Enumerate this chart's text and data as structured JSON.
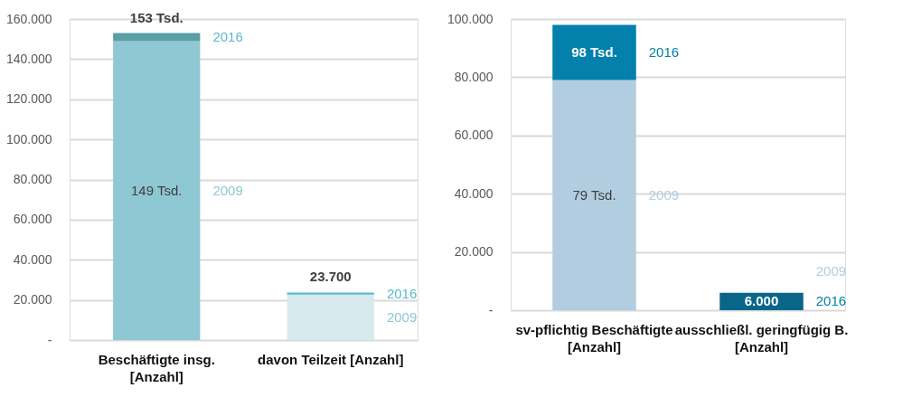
{
  "chart_data": [
    {
      "type": "bar",
      "stacked": true,
      "grid": "y",
      "categories": [
        "Beschäftigte insg. [Anzahl]",
        "davon Teilzeit [Anzahl]"
      ],
      "series": [
        {
          "name": "2009",
          "color": "#8ec8d2",
          "colors": [
            "#8ec8d2",
            "#d6eaed"
          ],
          "values": [
            149000,
            22700
          ]
        },
        {
          "name": "2016",
          "color": "#5ab8cc",
          "colors": [
            "#5a9ea6",
            "#5ab8cc"
          ],
          "values": [
            4000,
            1000
          ]
        }
      ],
      "totals": [
        null,
        "23.700"
      ],
      "annotations": [
        "149 Tsd.",
        {
          "text": "153 Tsd.",
          "x": "Beschäftigte insg. [Anzahl]",
          "y": 153000
        }
      ],
      "ylim": [
        0,
        160000
      ],
      "yticks": [
        {
          "value": 0,
          "label": "-"
        },
        {
          "value": 20000,
          "label": "20.000"
        },
        {
          "value": 40000,
          "label": "40.000"
        },
        {
          "value": 60000,
          "label": "60.000"
        },
        {
          "value": 80000,
          "label": "80.000"
        },
        {
          "value": 100000,
          "label": "100.000"
        },
        {
          "value": 120000,
          "label": "120.000"
        },
        {
          "value": 140000,
          "label": "140.000"
        },
        {
          "value": 160000,
          "label": "160.000"
        }
      ]
    },
    {
      "type": "bar",
      "stacked": true,
      "grid": "y",
      "categories": [
        "sv-pflichtig Beschäftigte [Anzahl]",
        "ausschließl. geringfügig B. [Anzahl]"
      ],
      "series": [
        {
          "name": "2009",
          "color": "#b3cde0",
          "colors": [
            "#b3cde0",
            "#b3cde0"
          ],
          "values": [
            79000,
            null
          ]
        },
        {
          "name": "2016",
          "color": "#0380ab",
          "colors": [
            "#0380ab",
            "#0a6688"
          ],
          "values": [
            19000,
            6000
          ]
        }
      ],
      "totals": [
        null,
        "6.000"
      ],
      "annotations": [
        "79 Tsd.",
        {
          "text": "98 Tsd.",
          "x": "sv-pflichtig Beschäftigte [Anzahl]",
          "y": 98000
        }
      ],
      "ylim": [
        0,
        100000
      ],
      "yticks": [
        {
          "value": 0,
          "label": "-"
        },
        {
          "value": 20000,
          "label": "20.000"
        },
        {
          "value": 40000,
          "label": "40.000"
        },
        {
          "value": 60000,
          "label": "60.000"
        },
        {
          "value": 80000,
          "label": "80.000"
        },
        {
          "value": 100000,
          "label": "100.000"
        }
      ]
    }
  ]
}
